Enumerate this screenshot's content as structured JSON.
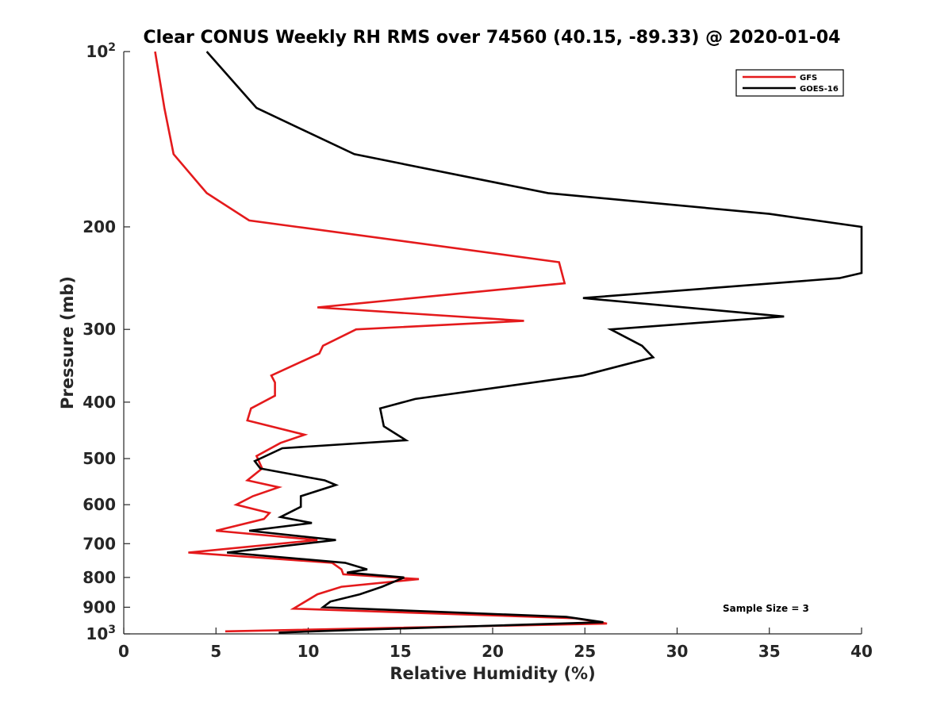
{
  "chart_data": {
    "type": "line",
    "title": "Clear CONUS Weekly RH RMS over 74560 (40.15, -89.33) @ 2020-01-04",
    "xlabel": "Relative Humidity (%)",
    "ylabel": "Pressure (mb)",
    "xlim": [
      0,
      40
    ],
    "ylim": [
      100,
      1000
    ],
    "y_scale": "log",
    "y_reversed": true,
    "grid": false,
    "legend_position": "top-right",
    "x_ticks": [
      "0",
      "5",
      "10",
      "15",
      "20",
      "25",
      "30",
      "35",
      "40"
    ],
    "x_tick_values": [
      0,
      5,
      10,
      15,
      20,
      25,
      30,
      35,
      40
    ],
    "y_ticks": [
      {
        "value": 100,
        "base": "10",
        "exp": "2"
      },
      {
        "value": 200,
        "label": "200"
      },
      {
        "value": 300,
        "label": "300"
      },
      {
        "value": 400,
        "label": "400"
      },
      {
        "value": 500,
        "label": "500"
      },
      {
        "value": 600,
        "label": "600"
      },
      {
        "value": 700,
        "label": "700"
      },
      {
        "value": 800,
        "label": "800"
      },
      {
        "value": 900,
        "label": "900"
      },
      {
        "value": 1000,
        "base": "10",
        "exp": "3"
      }
    ],
    "annotation": "Sample Size = 3",
    "series": [
      {
        "name": "GFS",
        "color": "#e41a1c",
        "points": [
          [
            1.7,
            100
          ],
          [
            2.2,
            125
          ],
          [
            2.7,
            150
          ],
          [
            4.5,
            175
          ],
          [
            6.8,
            195
          ],
          [
            9.4,
            200
          ],
          [
            23.6,
            230
          ],
          [
            23.9,
            250
          ],
          [
            10.5,
            275
          ],
          [
            21.7,
            290
          ],
          [
            12.6,
            300
          ],
          [
            10.8,
            320
          ],
          [
            10.6,
            330
          ],
          [
            8.0,
            360
          ],
          [
            8.2,
            370
          ],
          [
            8.2,
            390
          ],
          [
            6.9,
            410
          ],
          [
            6.7,
            430
          ],
          [
            9.8,
            455
          ],
          [
            8.5,
            470
          ],
          [
            7.2,
            495
          ],
          [
            7.5,
            520
          ],
          [
            6.7,
            545
          ],
          [
            8.4,
            560
          ],
          [
            7.0,
            580
          ],
          [
            6.1,
            600
          ],
          [
            7.9,
            620
          ],
          [
            7.6,
            635
          ],
          [
            5.0,
            665
          ],
          [
            10.5,
            690
          ],
          [
            3.5,
            725
          ],
          [
            11.3,
            755
          ],
          [
            11.8,
            775
          ],
          [
            11.9,
            790
          ],
          [
            16.0,
            805
          ],
          [
            11.8,
            830
          ],
          [
            10.5,
            855
          ],
          [
            9.2,
            905
          ],
          [
            24.5,
            940
          ],
          [
            26.2,
            960
          ],
          [
            5.5,
            990
          ]
        ]
      },
      {
        "name": "GOES-16",
        "color": "#000000",
        "points": [
          [
            4.5,
            100
          ],
          [
            7.2,
            125
          ],
          [
            12.5,
            150
          ],
          [
            23.0,
            175
          ],
          [
            35.0,
            190
          ],
          [
            40.0,
            200
          ],
          [
            40.0,
            240
          ],
          [
            38.8,
            245
          ],
          [
            24.9,
            265
          ],
          [
            35.8,
            285
          ],
          [
            26.4,
            300
          ],
          [
            28.1,
            320
          ],
          [
            28.7,
            335
          ],
          [
            24.9,
            360
          ],
          [
            15.8,
            395
          ],
          [
            13.9,
            410
          ],
          [
            14.1,
            440
          ],
          [
            15.3,
            465
          ],
          [
            8.6,
            480
          ],
          [
            7.1,
            505
          ],
          [
            7.4,
            520
          ],
          [
            10.9,
            545
          ],
          [
            11.5,
            555
          ],
          [
            9.6,
            580
          ],
          [
            9.6,
            605
          ],
          [
            8.5,
            630
          ],
          [
            10.2,
            645
          ],
          [
            6.8,
            665
          ],
          [
            11.5,
            690
          ],
          [
            5.6,
            725
          ],
          [
            12.0,
            755
          ],
          [
            13.2,
            775
          ],
          [
            12.1,
            785
          ],
          [
            15.2,
            800
          ],
          [
            14.0,
            830
          ],
          [
            12.8,
            855
          ],
          [
            11.2,
            880
          ],
          [
            10.8,
            900
          ],
          [
            24.0,
            935
          ],
          [
            26.0,
            955
          ],
          [
            12.3,
            985
          ],
          [
            8.4,
            995
          ]
        ]
      }
    ]
  }
}
